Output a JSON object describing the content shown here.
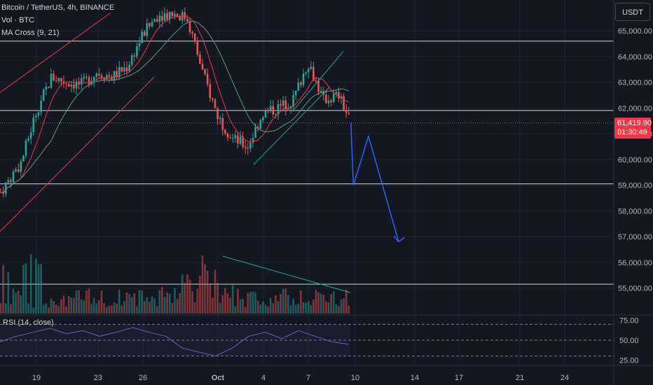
{
  "legend": {
    "symbol": "Bitcoin / TetherUS, 4h, BINANCE",
    "indicator_vol": "Vol · BTC",
    "indicator_ma": "MA Cross (9, 21)"
  },
  "currency_button": "USDT",
  "current_price": {
    "value": "61,419.90",
    "countdown": "01:30:49"
  },
  "rsi_label": "RSI (14, close)",
  "colors": {
    "background": "#131722",
    "up": "#26a69a",
    "down": "#ef5350",
    "ma_fast": "#f23645",
    "ma_slow": "#5d9a86",
    "trendline_red": "#f23645",
    "trendline_green": "#22ab94",
    "projection": "#2962ff",
    "rsi": "#7e57c2"
  },
  "chart_data": [
    {
      "type": "candlestick",
      "title": "Bitcoin / TetherUS, 4h, BINANCE",
      "y_axis": {
        "ticks": [
          65000,
          64000,
          63000,
          62000,
          61000,
          60000,
          59000,
          58000,
          57000,
          56000,
          55000
        ],
        "tick_labels": [
          "65,000.00",
          "64,000.00",
          "63,000.00",
          "62,000.00",
          "61,000.00",
          "60,000.00",
          "59,000.00",
          "58,000.00",
          "57,000.00",
          "56,000.00",
          "55,000.00"
        ],
        "ylim": [
          54500,
          65800
        ]
      },
      "x_axis": {
        "tick_labels": [
          "19",
          "23",
          "26",
          "Oct",
          "4",
          "7",
          "10",
          "14",
          "17",
          "21",
          "24"
        ],
        "tick_dates": [
          "2024-09-19",
          "2024-09-23",
          "2024-09-26",
          "2024-10-01",
          "2024-10-04",
          "2024-10-07",
          "2024-10-10",
          "2024-10-14",
          "2024-10-17",
          "2024-10-21",
          "2024-10-24"
        ]
      },
      "horizontal_levels": [
        64600,
        61900,
        59050,
        55150
      ],
      "current_price": 61419.9,
      "close_path": [
        [
          "2024-09-16",
          58200
        ],
        [
          "2024-09-18",
          59900
        ],
        [
          "2024-09-19",
          61900
        ],
        [
          "2024-09-20",
          63200
        ],
        [
          "2024-09-21",
          63000
        ],
        [
          "2024-09-22",
          62900
        ],
        [
          "2024-09-23",
          63400
        ],
        [
          "2024-09-24",
          63200
        ],
        [
          "2024-09-25",
          63600
        ],
        [
          "2024-09-26",
          64800
        ],
        [
          "2024-09-27",
          65600
        ],
        [
          "2024-09-28",
          65700
        ],
        [
          "2024-09-29",
          65500
        ],
        [
          "2024-09-30",
          63400
        ],
        [
          "2024-10-01",
          61700
        ],
        [
          "2024-10-02",
          60800
        ],
        [
          "2024-10-03",
          60500
        ],
        [
          "2024-10-04",
          61800
        ],
        [
          "2024-10-05",
          62000
        ],
        [
          "2024-10-06",
          62300
        ],
        [
          "2024-10-07",
          63800
        ],
        [
          "2024-10-08",
          62300
        ],
        [
          "2024-10-09",
          62500
        ],
        [
          "2024-10-09T20:00",
          61420
        ]
      ],
      "ma_cross": {
        "fast_period": 9,
        "slow_period": 21
      },
      "projection_path": [
        [
          "2024-10-09T20:00",
          61420
        ],
        [
          "2024-10-10",
          59000
        ],
        [
          "2024-10-11",
          60900
        ],
        [
          "2024-10-13",
          56800
        ]
      ],
      "volume": {
        "label": "Vol · BTC",
        "peak_date": "2024-09-30",
        "trend": "declining"
      }
    },
    {
      "type": "line",
      "title": "RSI (14, close)",
      "y_axis": {
        "ticks": [
          75,
          50,
          25
        ],
        "tick_labels": [
          "75.00",
          "50.00",
          "25.00"
        ],
        "ylim": [
          20,
          80
        ]
      },
      "bands": [
        70,
        50,
        30
      ],
      "series": [
        {
          "values": [
            48,
            55,
            60,
            65,
            58,
            62,
            55,
            60,
            66,
            60,
            55,
            40,
            35,
            30,
            40,
            55,
            60,
            52,
            62,
            55,
            48,
            45
          ]
        }
      ]
    }
  ]
}
